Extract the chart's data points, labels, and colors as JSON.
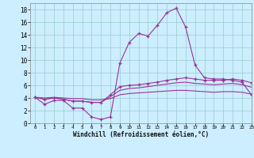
{
  "xlabel": "Windchill (Refroidissement éolien,°C)",
  "bg_color": "#cceeff",
  "line_color": "#993399",
  "grid_color": "#99cccc",
  "ylim": [
    0,
    19
  ],
  "xlim": [
    -0.5,
    23
  ],
  "yticks": [
    0,
    2,
    4,
    6,
    8,
    10,
    12,
    14,
    16,
    18
  ],
  "xticks": [
    0,
    1,
    2,
    3,
    4,
    5,
    6,
    7,
    8,
    9,
    10,
    11,
    12,
    13,
    14,
    15,
    16,
    17,
    18,
    19,
    20,
    21,
    22,
    23
  ],
  "series1_x": [
    0,
    1,
    2,
    3,
    4,
    5,
    6,
    7,
    8,
    9,
    10,
    11,
    12,
    13,
    14,
    15,
    16,
    17,
    18,
    19,
    20,
    21,
    22,
    23
  ],
  "series1_y": [
    4.1,
    3.0,
    3.6,
    3.6,
    2.4,
    2.4,
    1.0,
    0.6,
    1.0,
    9.5,
    12.8,
    14.2,
    13.8,
    15.5,
    17.5,
    18.2,
    15.2,
    9.2,
    7.2,
    7.0,
    7.0,
    6.8,
    6.5,
    4.5
  ],
  "series2_x": [
    0,
    1,
    2,
    3,
    4,
    5,
    6,
    7,
    8,
    9,
    10,
    11,
    12,
    13,
    14,
    15,
    16,
    17,
    18,
    19,
    20,
    21,
    22,
    23
  ],
  "series2_y": [
    4.1,
    3.8,
    4.0,
    3.8,
    3.5,
    3.5,
    3.3,
    3.3,
    4.5,
    5.8,
    6.0,
    6.1,
    6.3,
    6.5,
    6.8,
    7.0,
    7.2,
    7.0,
    6.8,
    6.8,
    6.8,
    7.0,
    6.8,
    6.4
  ],
  "series3_x": [
    0,
    1,
    2,
    3,
    4,
    5,
    6,
    7,
    8,
    9,
    10,
    11,
    12,
    13,
    14,
    15,
    16,
    17,
    18,
    19,
    20,
    21,
    22,
    23
  ],
  "series3_y": [
    4.1,
    3.8,
    4.0,
    3.8,
    3.5,
    3.5,
    3.3,
    3.3,
    4.2,
    5.2,
    5.5,
    5.6,
    5.8,
    6.0,
    6.2,
    6.4,
    6.5,
    6.3,
    6.2,
    6.1,
    6.2,
    6.3,
    6.1,
    5.7
  ],
  "series4_x": [
    0,
    1,
    2,
    3,
    4,
    5,
    6,
    7,
    8,
    9,
    10,
    11,
    12,
    13,
    14,
    15,
    16,
    17,
    18,
    19,
    20,
    21,
    22,
    23
  ],
  "series4_y": [
    4.1,
    4.0,
    4.1,
    4.0,
    3.9,
    3.9,
    3.7,
    3.7,
    3.9,
    4.5,
    4.7,
    4.8,
    4.9,
    5.0,
    5.1,
    5.2,
    5.2,
    5.1,
    5.0,
    4.9,
    5.0,
    5.0,
    4.9,
    4.6
  ]
}
